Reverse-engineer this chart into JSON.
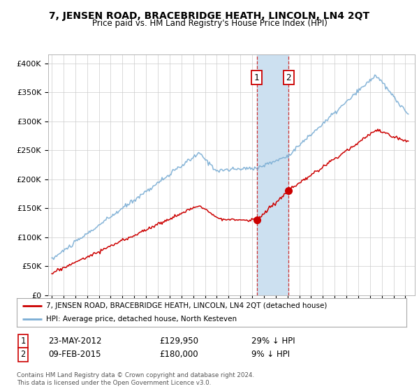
{
  "title": "7, JENSEN ROAD, BRACEBRIDGE HEATH, LINCOLN, LN4 2QT",
  "subtitle": "Price paid vs. HM Land Registry's House Price Index (HPI)",
  "ylabel_ticks": [
    "£0",
    "£50K",
    "£100K",
    "£150K",
    "£200K",
    "£250K",
    "£300K",
    "£350K",
    "£400K"
  ],
  "ytick_values": [
    0,
    50000,
    100000,
    150000,
    200000,
    250000,
    300000,
    350000,
    400000
  ],
  "ylim": [
    0,
    415000
  ],
  "xlim_start": 1994.7,
  "xlim_end": 2025.8,
  "sale1": {
    "date_x": 2012.39,
    "price": 129950,
    "label": "1"
  },
  "sale2": {
    "date_x": 2015.1,
    "price": 180000,
    "label": "2"
  },
  "legend_line1": "7, JENSEN ROAD, BRACEBRIDGE HEATH, LINCOLN, LN4 2QT (detached house)",
  "legend_line2": "HPI: Average price, detached house, North Kesteven",
  "table_row1_date": "23-MAY-2012",
  "table_row1_price": "£129,950",
  "table_row1_hpi": "29% ↓ HPI",
  "table_row2_date": "09-FEB-2015",
  "table_row2_price": "£180,000",
  "table_row2_hpi": "9% ↓ HPI",
  "footnote": "Contains HM Land Registry data © Crown copyright and database right 2024.\nThis data is licensed under the Open Government Licence v3.0.",
  "line_color_red": "#cc0000",
  "line_color_blue": "#7aadd4",
  "highlight_fill": "#cce0f0",
  "marker_color_red": "#cc0000",
  "background_color": "#ffffff",
  "grid_color": "#cccccc"
}
